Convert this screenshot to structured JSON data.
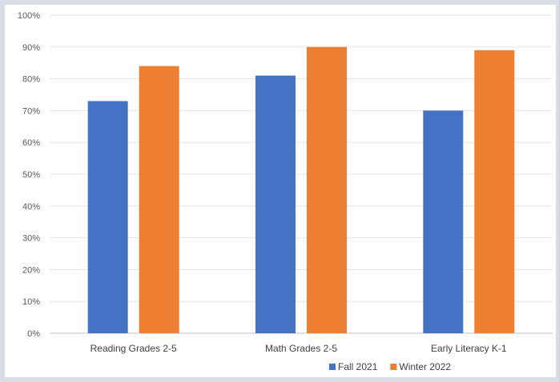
{
  "chart_data": {
    "type": "bar",
    "title": "",
    "xlabel": "",
    "ylabel": "",
    "categories": [
      "Reading Grades 2-5",
      "Math Grades 2-5",
      "Early Literacy K-1"
    ],
    "series": [
      {
        "name": "Fall 2021",
        "values": [
          73,
          81,
          70
        ],
        "color": "#4472c4"
      },
      {
        "name": "Winter 2022",
        "values": [
          84,
          90,
          89
        ],
        "color": "#ed7d31"
      }
    ],
    "ylim": [
      0,
      100
    ],
    "yticks": [
      "0%",
      "10%",
      "20%",
      "30%",
      "40%",
      "50%",
      "60%",
      "70%",
      "80%",
      "90%",
      "100%"
    ],
    "grid": true,
    "legend_position": "bottom"
  }
}
